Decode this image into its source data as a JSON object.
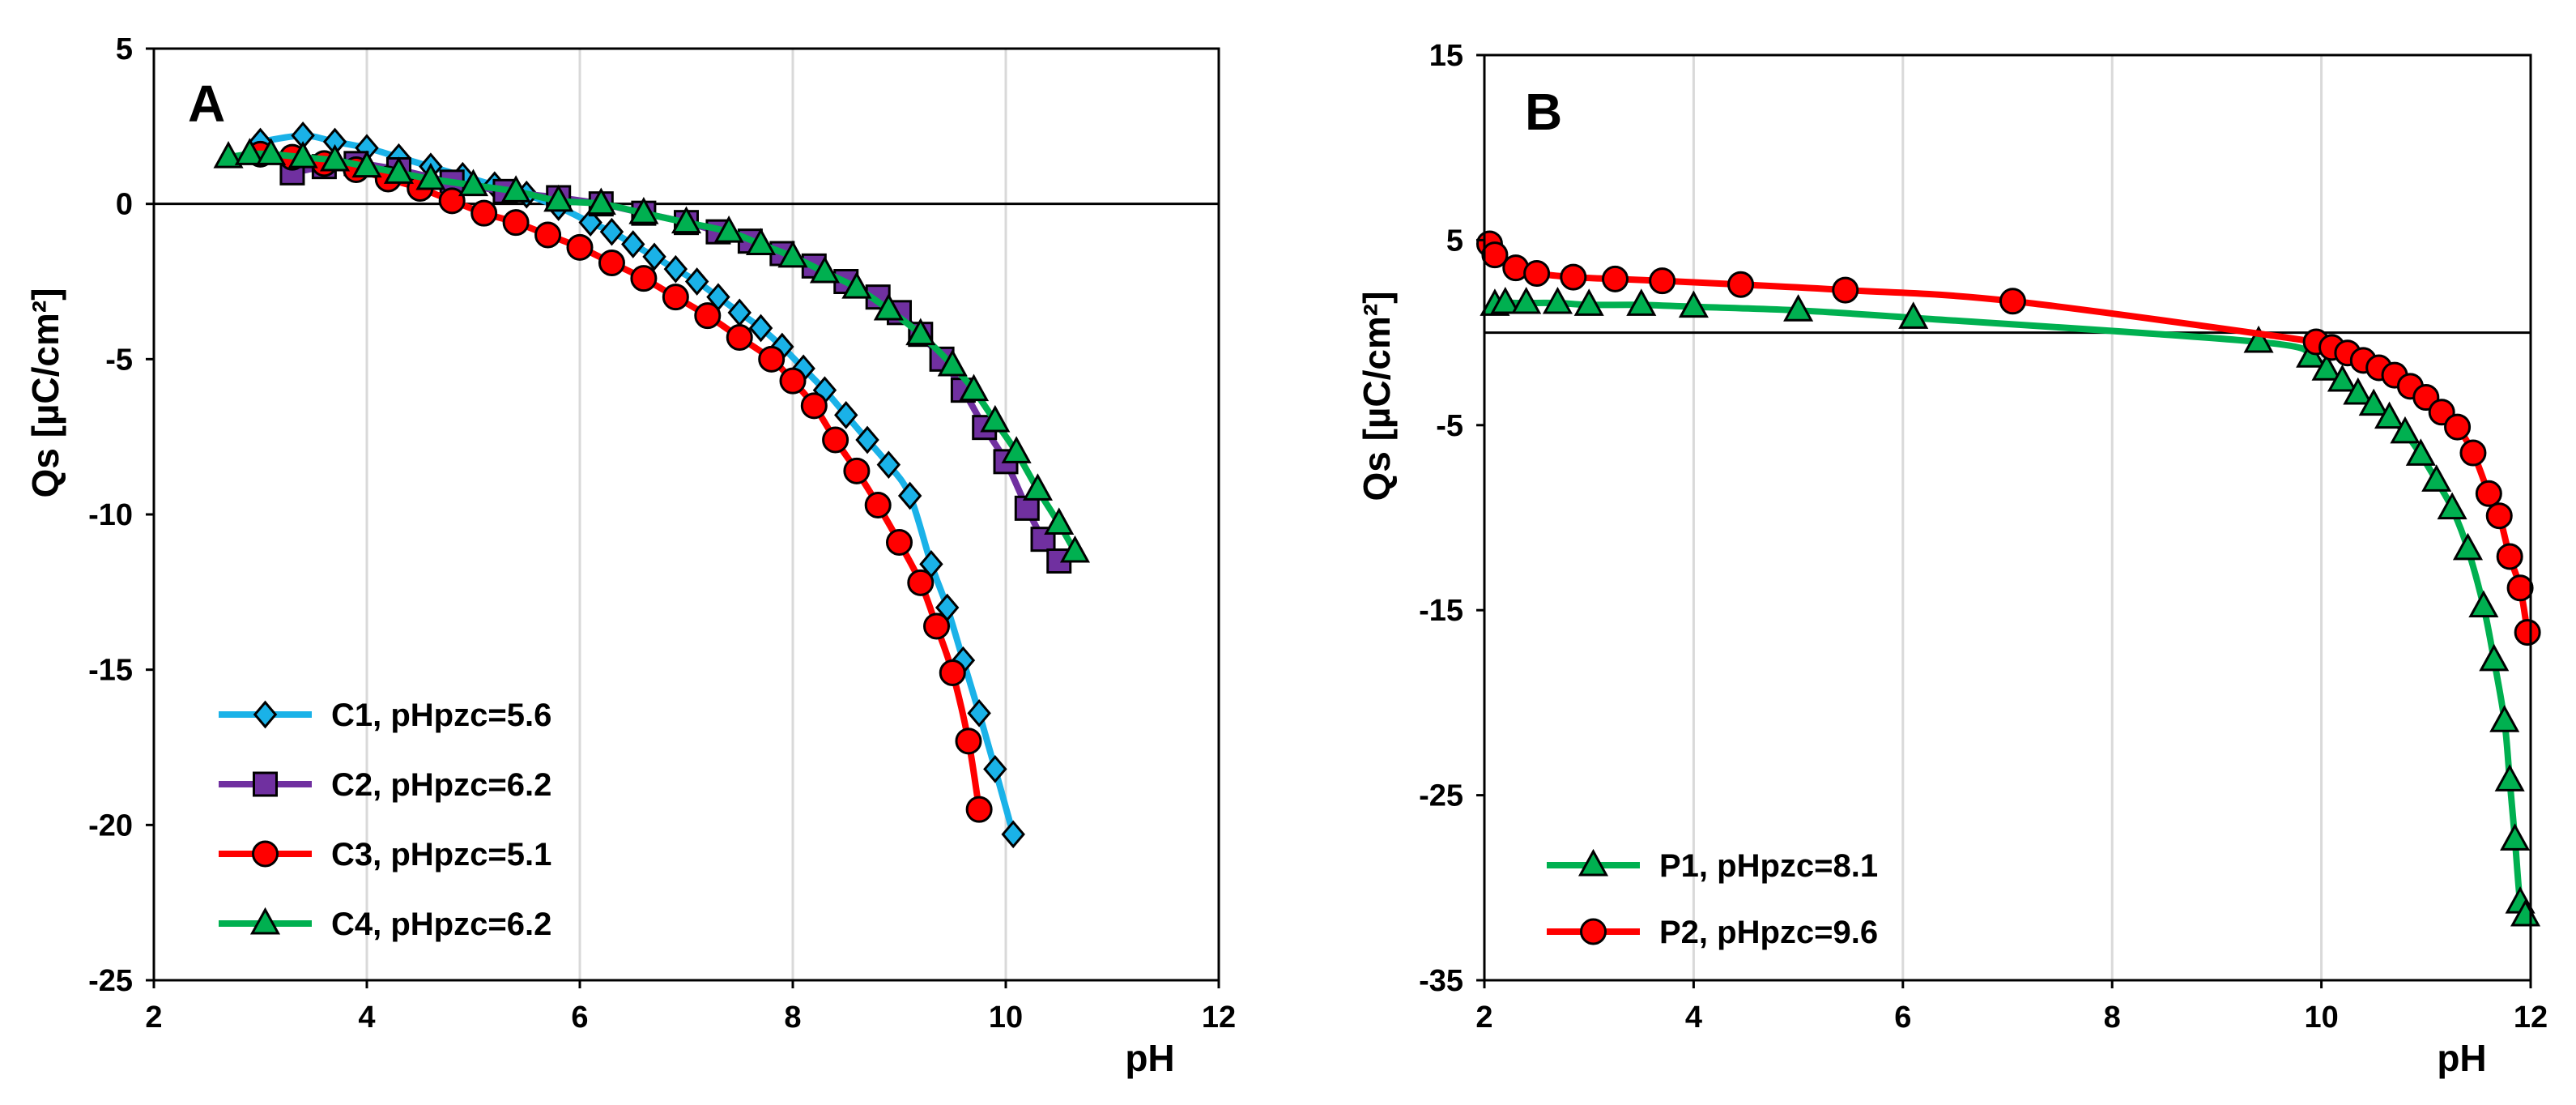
{
  "chart_data": [
    {
      "type": "line",
      "panel_label": "A",
      "xlabel": "pH",
      "ylabel": "Qs [µC/cm²]",
      "xlim": [
        2,
        12
      ],
      "ylim": [
        -25,
        5
      ],
      "xticks": [
        "2",
        "4",
        "6",
        "8",
        "10",
        "12"
      ],
      "yticks": [
        "5",
        "0",
        "-5",
        "-10",
        "-15",
        "-20",
        "-25"
      ],
      "grid": "vertical",
      "legend_position": "bottom-left",
      "series": [
        {
          "name": "C1, pHpzc=5.6",
          "color": "#1ab2e8",
          "marker": "diamond",
          "x": [
            3.0,
            3.4,
            3.7,
            4.0,
            4.3,
            4.6,
            4.9,
            5.2,
            5.5,
            5.8,
            6.1,
            6.3,
            6.5,
            6.7,
            6.9,
            7.1,
            7.3,
            7.5,
            7.7,
            7.9,
            8.1,
            8.3,
            8.5,
            8.7,
            8.9,
            9.1,
            9.3,
            9.45,
            9.6,
            9.75,
            9.9,
            10.07
          ],
          "y": [
            2.0,
            2.2,
            2.0,
            1.8,
            1.5,
            1.2,
            0.9,
            0.6,
            0.3,
            -0.1,
            -0.6,
            -0.9,
            -1.3,
            -1.7,
            -2.1,
            -2.5,
            -3.0,
            -3.5,
            -4.0,
            -4.6,
            -5.3,
            -6.0,
            -6.8,
            -7.6,
            -8.4,
            -9.4,
            -11.6,
            -13.0,
            -14.7,
            -16.4,
            -18.2,
            -20.3
          ]
        },
        {
          "name": "C2, pHpzc=6.2",
          "color": "#7030a0",
          "marker": "square",
          "x": [
            3.3,
            3.6,
            3.9,
            4.3,
            4.8,
            5.3,
            5.8,
            6.2,
            6.6,
            7.0,
            7.3,
            7.6,
            7.9,
            8.2,
            8.5,
            8.8,
            9.0,
            9.2,
            9.4,
            9.6,
            9.8,
            10.0,
            10.2,
            10.35,
            10.5
          ],
          "y": [
            1.0,
            1.2,
            1.3,
            1.1,
            0.7,
            0.4,
            0.2,
            0.0,
            -0.3,
            -0.6,
            -0.9,
            -1.2,
            -1.6,
            -2.0,
            -2.5,
            -3.0,
            -3.5,
            -4.2,
            -5.0,
            -6.0,
            -7.2,
            -8.3,
            -9.8,
            -10.8,
            -11.5
          ]
        },
        {
          "name": "C3, pHpzc=5.1",
          "color": "#ff0000",
          "marker": "circle",
          "x": [
            3.0,
            3.3,
            3.6,
            3.9,
            4.2,
            4.5,
            4.8,
            5.1,
            5.4,
            5.7,
            6.0,
            6.3,
            6.6,
            6.9,
            7.2,
            7.5,
            7.8,
            8.0,
            8.2,
            8.4,
            8.6,
            8.8,
            9.0,
            9.2,
            9.35,
            9.5,
            9.65,
            9.75
          ],
          "y": [
            1.6,
            1.5,
            1.3,
            1.1,
            0.8,
            0.5,
            0.1,
            -0.3,
            -0.6,
            -1.0,
            -1.4,
            -1.9,
            -2.4,
            -3.0,
            -3.6,
            -4.3,
            -5.0,
            -5.7,
            -6.5,
            -7.6,
            -8.6,
            -9.7,
            -10.9,
            -12.2,
            -13.6,
            -15.1,
            -17.3,
            -19.5
          ]
        },
        {
          "name": "C4, pHpzc=6.2",
          "color": "#00b050",
          "marker": "triangle",
          "x": [
            2.7,
            2.9,
            3.1,
            3.4,
            3.7,
            4.0,
            4.3,
            4.6,
            5.0,
            5.4,
            5.8,
            6.2,
            6.6,
            7.0,
            7.4,
            7.7,
            8.0,
            8.3,
            8.6,
            8.9,
            9.2,
            9.5,
            9.7,
            9.9,
            10.1,
            10.3,
            10.5,
            10.65
          ],
          "y": [
            1.5,
            1.6,
            1.6,
            1.5,
            1.4,
            1.2,
            1.0,
            0.8,
            0.6,
            0.4,
            0.1,
            0.0,
            -0.3,
            -0.6,
            -0.9,
            -1.3,
            -1.7,
            -2.2,
            -2.7,
            -3.4,
            -4.2,
            -5.2,
            -6.0,
            -7.0,
            -8.0,
            -9.2,
            -10.3,
            -11.2
          ]
        }
      ]
    },
    {
      "type": "line",
      "panel_label": "B",
      "xlabel": "pH",
      "ylabel": "Qs [µC/cm²]",
      "xlim": [
        2,
        12
      ],
      "ylim": [
        -35,
        15
      ],
      "xticks": [
        "2",
        "4",
        "6",
        "8",
        "10",
        "12"
      ],
      "yticks": [
        "15",
        "5",
        "-5",
        "-15",
        "-25",
        "-35"
      ],
      "grid": "vertical",
      "legend_position": "bottom-left",
      "series": [
        {
          "name": "P1, pHpzc=8.1",
          "color": "#00b050",
          "marker": "triangle",
          "x": [
            2.1,
            2.2,
            2.4,
            2.7,
            3.0,
            3.5,
            4.0,
            5.0,
            6.1,
            9.4,
            9.9,
            10.05,
            10.2,
            10.35,
            10.5,
            10.65,
            10.8,
            10.95,
            11.1,
            11.25,
            11.4,
            11.55,
            11.65,
            11.75,
            11.8,
            11.85,
            11.9,
            11.95
          ],
          "y": [
            1.5,
            1.6,
            1.6,
            1.6,
            1.5,
            1.5,
            1.4,
            1.2,
            0.8,
            -0.5,
            -1.3,
            -2.0,
            -2.6,
            -3.3,
            -3.9,
            -4.6,
            -5.4,
            -6.6,
            -8.0,
            -9.5,
            -11.7,
            -14.8,
            -17.7,
            -21.0,
            -24.2,
            -27.4,
            -30.8,
            -31.5
          ]
        },
        {
          "name": "P2, pHpzc=9.6",
          "color": "#ff0000",
          "marker": "circle",
          "x": [
            2.05,
            2.1,
            2.3,
            2.5,
            2.85,
            3.25,
            3.7,
            4.45,
            5.45,
            7.05,
            9.95,
            10.1,
            10.25,
            10.4,
            10.55,
            10.7,
            10.85,
            11.0,
            11.15,
            11.3,
            11.45,
            11.6,
            11.7,
            11.8,
            11.9,
            11.97
          ],
          "y": [
            4.8,
            4.2,
            3.5,
            3.2,
            3.0,
            2.9,
            2.8,
            2.6,
            2.3,
            1.7,
            -0.5,
            -0.8,
            -1.1,
            -1.5,
            -1.9,
            -2.3,
            -2.9,
            -3.5,
            -4.3,
            -5.1,
            -6.5,
            -8.7,
            -9.9,
            -12.1,
            -13.8,
            -16.2
          ]
        }
      ]
    }
  ]
}
